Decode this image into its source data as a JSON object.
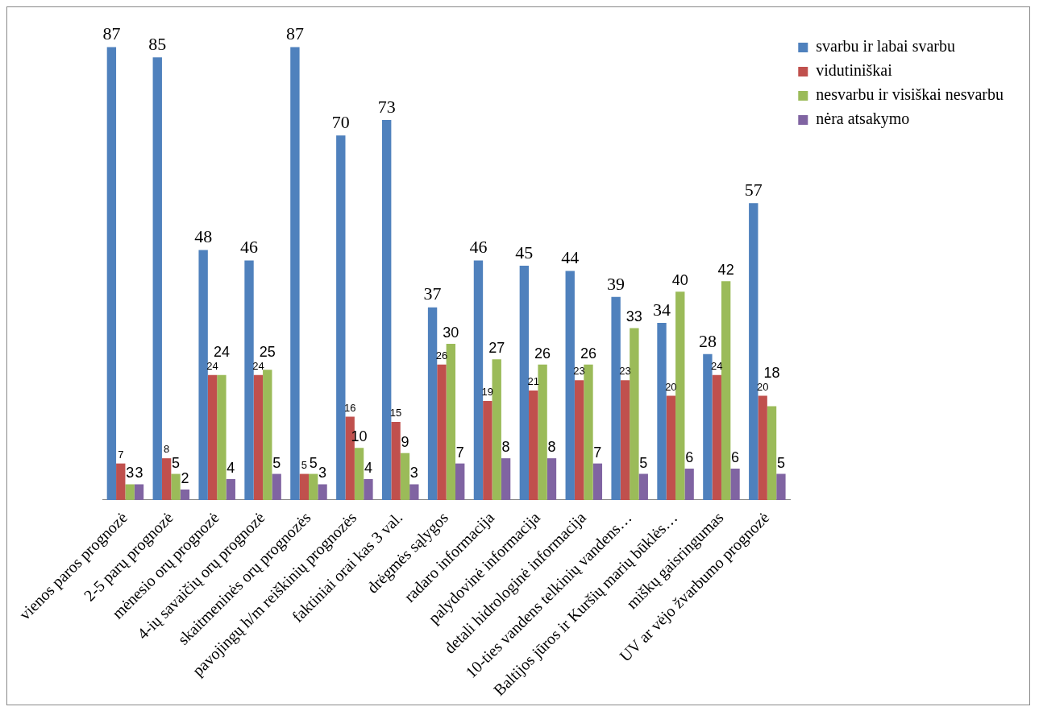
{
  "chart_data": {
    "type": "bar",
    "categories": [
      "vienos paros prognozė",
      "2-5 parų prognozė",
      "mėnesio orų prognozė",
      "4-ių savaičių orų prognozė",
      "skaitmeninės orų prognozės",
      "pavojingų h/m reiškinių prognozės",
      "faktiniai orai kas 3 val.",
      "drėgmės sąlygos",
      "radaro informacija",
      "palydovinė informacija",
      "detali hidrologinė informacija",
      "10-ties vandens telkinių vandens…",
      "Baltijos jūros ir Kuršių marių būklės…",
      "miškų gaisringumas",
      "UV ar vėjo žvarbumo prognozė"
    ],
    "series": [
      {
        "name": "svarbu ir labai svarbu",
        "color": "#4f81bd",
        "values": [
          87,
          85,
          48,
          46,
          87,
          70,
          73,
          37,
          46,
          45,
          44,
          39,
          34,
          28,
          57
        ]
      },
      {
        "name": "vidutiniškai",
        "color": "#c0504d",
        "values": [
          7,
          8,
          24,
          24,
          5,
          16,
          15,
          26,
          19,
          21,
          23,
          23,
          20,
          24,
          20
        ]
      },
      {
        "name": "nesvarbu ir visiškai nesvarbu",
        "color": "#9bbb59",
        "values": [
          3,
          5,
          24,
          25,
          5,
          10,
          9,
          30,
          27,
          26,
          26,
          33,
          40,
          42,
          18
        ]
      },
      {
        "name": "nėra atsakymo",
        "color": "#8064a2",
        "values": [
          3,
          2,
          4,
          5,
          3,
          4,
          3,
          7,
          8,
          8,
          7,
          5,
          6,
          6,
          5
        ]
      }
    ],
    "relative": false,
    "data_labels": true,
    "grid": false,
    "legend": "top right"
  }
}
